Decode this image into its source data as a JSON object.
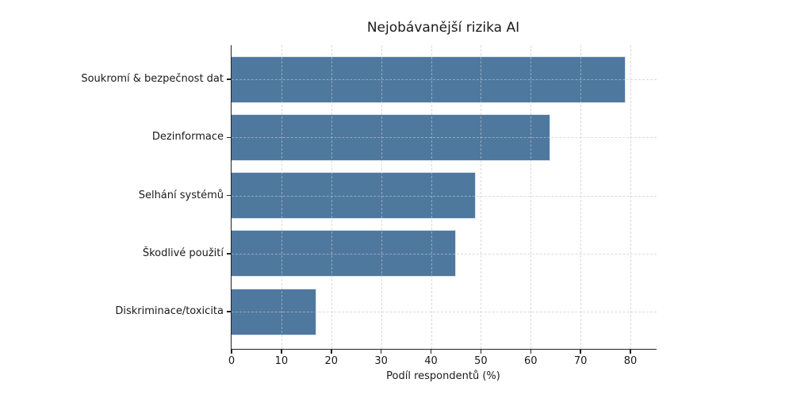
{
  "chart_data": {
    "type": "bar",
    "orientation": "horizontal",
    "title": "Nejobávanější rizika AI",
    "categories": [
      "Soukromí & bezpečnost dat",
      "Dezinformace",
      "Selhání systémů",
      "Škodlivé použití",
      "Diskriminace/toxicita"
    ],
    "values": [
      79,
      64,
      49,
      45,
      17
    ],
    "xlabel": "Podíl respondentů (%)",
    "ylabel": "",
    "xlim": [
      0,
      85
    ],
    "xticks": [
      0,
      10,
      20,
      30,
      40,
      50,
      60,
      70,
      80
    ],
    "grid": "dashed, both axes, light gray",
    "legend": "none",
    "colors": {
      "bar_fill": "#4f789f",
      "bar_edge": "#d9e4ee",
      "spine": "#212121",
      "gridline": "#c4c4c4",
      "text": "#1a1a1a",
      "background": "#ffffff"
    }
  }
}
